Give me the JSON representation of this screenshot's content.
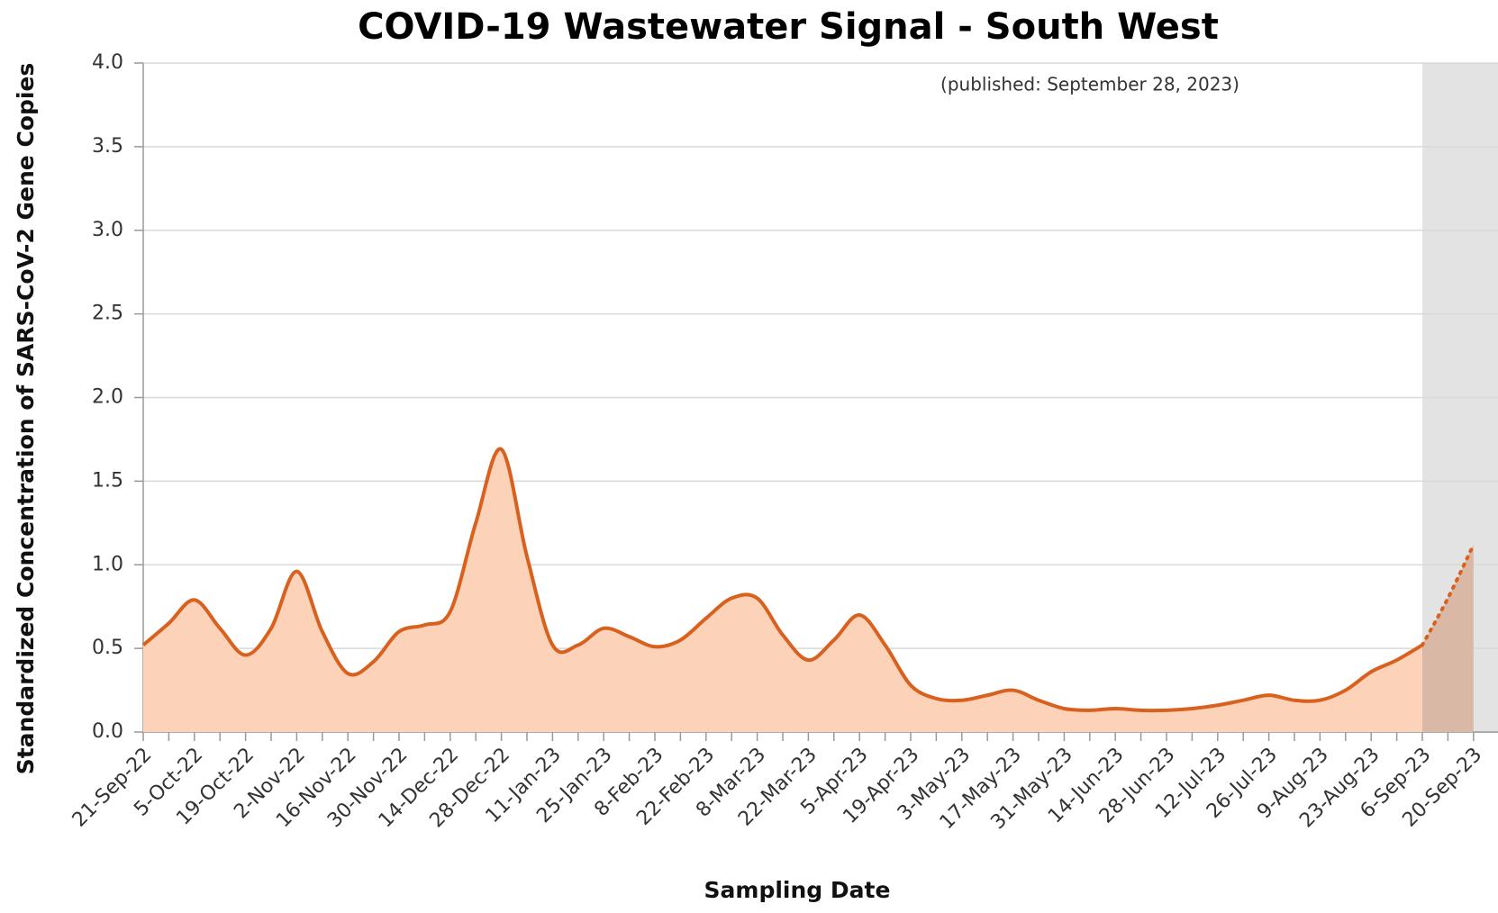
{
  "chart_data": {
    "type": "area",
    "title": "COVID-19 Wastewater Signal - South West",
    "annotation": "(published: September 28, 2023)",
    "x_label": "Sampling Date",
    "y_label": "Standardized Concentration of SARS-CoV-2 Gene Copies",
    "categories": [
      "21-Sep-22",
      null,
      "5-Oct-22",
      null,
      "19-Oct-22",
      null,
      "2-Nov-22",
      null,
      "16-Nov-22",
      null,
      "30-Nov-22",
      null,
      "14-Dec-22",
      null,
      "28-Dec-22",
      null,
      "11-Jan-23",
      null,
      "25-Jan-23",
      null,
      "8-Feb-23",
      null,
      "22-Feb-23",
      null,
      "8-Mar-23",
      null,
      "22-Mar-23",
      null,
      "5-Apr-23",
      null,
      "19-Apr-23",
      null,
      "3-May-23",
      null,
      "17-May-23",
      null,
      "31-May-23",
      null,
      "14-Jun-23",
      null,
      "28-Jun-23",
      null,
      "12-Jul-23",
      null,
      "26-Jul-23",
      null,
      "9-Aug-23",
      null,
      "23-Aug-23",
      null,
      "6-Sep-23",
      null,
      "20-Sep-23"
    ],
    "series": [
      {
        "color": "#d9611f",
        "fill": "#fcd3b8",
        "line_style": "solid",
        "values": [
          0.52,
          0.65,
          0.79,
          0.62,
          0.46,
          0.62,
          0.96,
          0.6,
          0.35,
          0.42,
          0.6,
          0.64,
          0.72,
          1.25,
          1.69,
          1.05,
          0.52,
          0.52,
          0.62,
          0.57,
          0.51,
          0.55,
          0.68,
          0.8,
          0.8,
          0.58,
          0.43,
          0.55,
          0.7,
          0.52,
          0.28,
          0.2,
          0.19,
          0.22,
          0.25,
          0.19,
          0.14,
          0.13,
          0.14,
          0.13,
          0.13,
          0.14,
          0.16,
          0.19,
          0.22,
          0.19,
          0.19,
          0.25,
          0.36,
          0.43,
          0.52,
          null,
          null
        ]
      },
      {
        "color": "#d9611f",
        "fill": "#d9b8a6",
        "line_style": "dotted",
        "values": [
          null,
          null,
          null,
          null,
          null,
          null,
          null,
          null,
          null,
          null,
          null,
          null,
          null,
          null,
          null,
          null,
          null,
          null,
          null,
          null,
          null,
          null,
          null,
          null,
          null,
          null,
          null,
          null,
          null,
          null,
          null,
          null,
          null,
          null,
          null,
          null,
          null,
          null,
          null,
          null,
          null,
          null,
          null,
          null,
          null,
          null,
          null,
          null,
          null,
          null,
          0.52,
          0.8,
          1.12
        ]
      }
    ],
    "shade_color": "#e3e3e3",
    "ylim": [
      0,
      4
    ],
    "yticks": [
      {
        "value": 0,
        "label": "0.0"
      },
      {
        "value": 0.5,
        "label": "0.5"
      },
      {
        "value": 1,
        "label": "1.0"
      },
      {
        "value": 1.5,
        "label": "1.5"
      },
      {
        "value": 2,
        "label": "2.0"
      },
      {
        "value": 2.5,
        "label": "2.5"
      },
      {
        "value": 3,
        "label": "3.0"
      },
      {
        "value": 3.5,
        "label": "3.5"
      },
      {
        "value": 4,
        "label": "4.0"
      }
    ],
    "grid": true
  }
}
